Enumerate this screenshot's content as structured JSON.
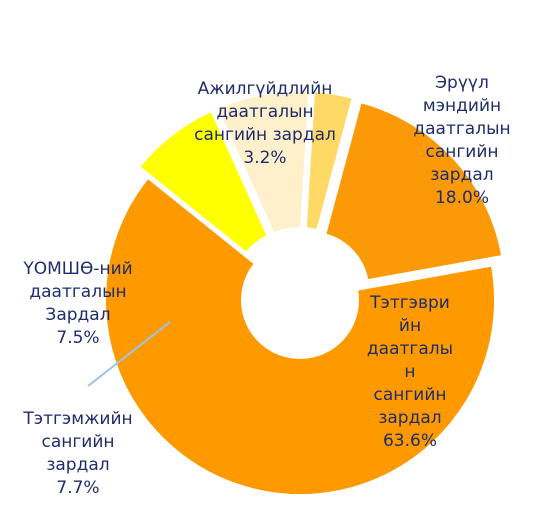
{
  "chart_data": {
    "type": "donut",
    "categories": [
      "Эрүүл мэндийн\nдаатгалын\nсангийн\nзардал",
      "Тэтгэври\nйн\nдаатгалы\nн\nсангийн\nзардал",
      "ҮОМШӨ-ний\nдаатгалын\nЗардал",
      "Тэтгэмжийн\nсангийн\nзардал",
      "Ажилгүйдлийн\nдаатгалын\nсангийн зардал"
    ],
    "values": [
      18.0,
      63.6,
      7.5,
      7.7,
      3.2
    ],
    "value_labels": [
      "18.0%",
      "63.6%",
      "7.5%",
      "7.7%",
      "3.2%"
    ],
    "colors": [
      "#fb9a06",
      "#ff9900",
      "#ffff00",
      "#fff0cc",
      "#ffd966"
    ]
  }
}
